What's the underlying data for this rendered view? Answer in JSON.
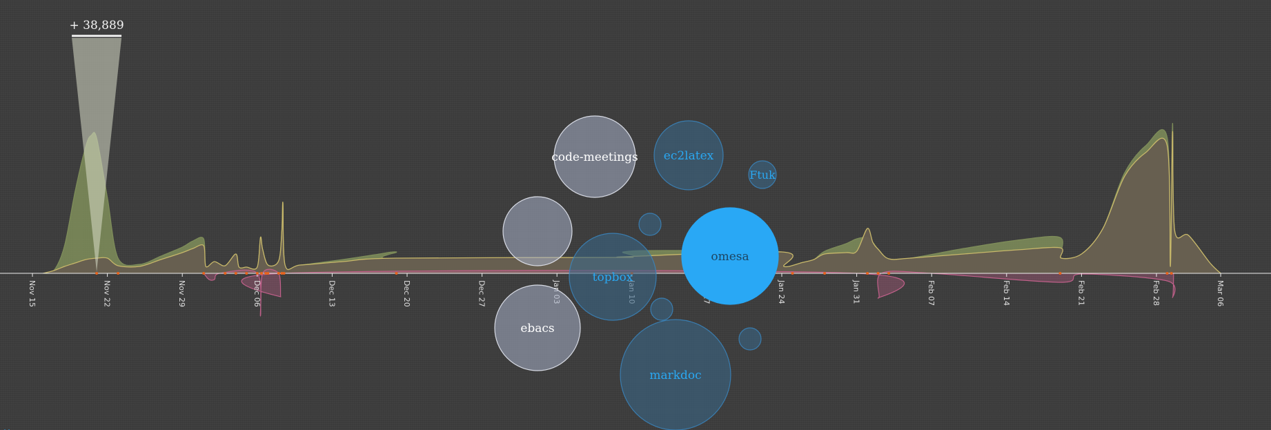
{
  "chart_data": {
    "type": "area",
    "x_axis": {
      "ticks": [
        "Nov 15",
        "Nov 22",
        "Nov 29",
        "Dec 06",
        "Dec 13",
        "Dec 20",
        "Dec 27",
        "Jan 03",
        "Jan 10",
        "Jan 17",
        "Jan 24",
        "Jan 31",
        "Feb 07",
        "Feb 14",
        "Feb 21",
        "Feb 28",
        "Mar 06"
      ]
    },
    "annotation": {
      "text": "+ 38,889",
      "at": "Nov 21"
    },
    "series": [
      {
        "role": "upper-green",
        "color": "#8aa860",
        "points": [
          [
            "Nov 16",
            0
          ],
          [
            "Nov 17",
            4
          ],
          [
            "Nov 18",
            40
          ],
          [
            "Nov 19",
            120
          ],
          [
            "Nov 20",
            185
          ],
          [
            "Nov 20.5",
            200
          ],
          [
            "Nov 21",
            196
          ],
          [
            "Nov 22",
            110
          ],
          [
            "Nov 23",
            22
          ],
          [
            "Nov 25",
            13
          ],
          [
            "Nov 27",
            25
          ],
          [
            "Nov 29",
            38
          ],
          [
            "Nov 30",
            47
          ],
          [
            "Dec 01",
            50
          ],
          [
            "Dec 01.2",
            10
          ],
          [
            "Dec 02",
            17
          ],
          [
            "Dec 03",
            11
          ],
          [
            "Dec 04",
            28
          ],
          [
            "Dec 04.3",
            9
          ],
          [
            "Dec 05",
            9
          ],
          [
            "Dec 06",
            9
          ],
          [
            "Dec 06.3",
            52
          ],
          [
            "Dec 06.5",
            35
          ],
          [
            "Dec 07",
            12
          ],
          [
            "Dec 08",
            18
          ],
          [
            "Dec 08.3",
            62
          ],
          [
            "Dec 08.4",
            102
          ],
          [
            "Dec 08.6",
            12
          ],
          [
            "Dec 10",
            12
          ],
          [
            "Dec 14",
            20
          ],
          [
            "Dec 17",
            27
          ],
          [
            "Dec 19",
            31
          ],
          [
            "Dec 19.1",
            20
          ],
          [
            "Jan 09",
            21
          ],
          [
            "Jan 09.2",
            31
          ],
          [
            "Jan 13",
            33
          ],
          [
            "Jan 24",
            31
          ],
          [
            "Jan 24.2",
            10
          ],
          [
            "Jan 26",
            16
          ],
          [
            "Jan 27",
            20
          ],
          [
            "Jan 28",
            32
          ],
          [
            "Jan 30",
            43
          ],
          [
            "Jan 31",
            50
          ],
          [
            "Feb 01",
            52
          ],
          [
            "Feb 01.5",
            45
          ],
          [
            "Feb 02",
            35
          ],
          [
            "Feb 03",
            21
          ],
          [
            "Feb 05",
            22
          ],
          [
            "Feb 10",
            36
          ],
          [
            "Feb 15",
            48
          ],
          [
            "Feb 19",
            52
          ],
          [
            "Feb 19.1",
            22
          ],
          [
            "Feb 21",
            28
          ],
          [
            "Feb 23",
            65
          ],
          [
            "Feb 25",
            145
          ],
          [
            "Feb 27",
            185
          ],
          [
            "Mar 01",
            197
          ],
          [
            "Mar 01.3",
            10
          ],
          [
            "Mar 01.5",
            217
          ],
          [
            "Mar 01.7",
            62
          ],
          [
            "Mar 03",
            55
          ],
          [
            "Mar 05",
            15
          ],
          [
            "Mar 06",
            0
          ]
        ]
      },
      {
        "role": "base-tan",
        "color": "#c8b86a",
        "points": [
          [
            "Nov 16",
            0
          ],
          [
            "Nov 17",
            4
          ],
          [
            "Nov 18",
            10
          ],
          [
            "Nov 19",
            15
          ],
          [
            "Nov 20",
            20
          ],
          [
            "Nov 21",
            22
          ],
          [
            "Nov 22",
            22
          ],
          [
            "Nov 23",
            11
          ],
          [
            "Nov 25",
            10
          ],
          [
            "Nov 27",
            20
          ],
          [
            "Nov 29",
            30
          ],
          [
            "Nov 30",
            36
          ],
          [
            "Dec 01",
            40
          ],
          [
            "Dec 01.2",
            10
          ],
          [
            "Dec 02",
            17
          ],
          [
            "Dec 03",
            11
          ],
          [
            "Dec 04",
            28
          ],
          [
            "Dec 04.3",
            9
          ],
          [
            "Dec 05",
            9
          ],
          [
            "Dec 06",
            9
          ],
          [
            "Dec 06.3",
            52
          ],
          [
            "Dec 06.5",
            35
          ],
          [
            "Dec 07",
            12
          ],
          [
            "Dec 08",
            18
          ],
          [
            "Dec 08.3",
            62
          ],
          [
            "Dec 08.4",
            102
          ],
          [
            "Dec 08.6",
            12
          ],
          [
            "Dec 10",
            12
          ],
          [
            "Dec 14",
            17
          ],
          [
            "Dec 19",
            22
          ],
          [
            "Jan 09",
            23
          ],
          [
            "Jan 09.2",
            24
          ],
          [
            "Jan 24",
            31
          ],
          [
            "Jan 24.2",
            10
          ],
          [
            "Jan 26",
            16
          ],
          [
            "Jan 27",
            20
          ],
          [
            "Jan 28",
            28
          ],
          [
            "Jan 30",
            30
          ],
          [
            "Jan 31",
            32
          ],
          [
            "Feb 01",
            65
          ],
          [
            "Feb 01.5",
            45
          ],
          [
            "Feb 02",
            35
          ],
          [
            "Feb 03",
            21
          ],
          [
            "Feb 05",
            22
          ],
          [
            "Feb 10",
            28
          ],
          [
            "Feb 15",
            34
          ],
          [
            "Feb 19",
            37
          ],
          [
            "Feb 19.1",
            22
          ],
          [
            "Feb 21",
            28
          ],
          [
            "Feb 23",
            65
          ],
          [
            "Feb 25",
            140
          ],
          [
            "Feb 27",
            175
          ],
          [
            "Mar 01",
            185
          ],
          [
            "Mar 01.3",
            10
          ],
          [
            "Mar 01.5",
            205
          ],
          [
            "Mar 01.7",
            62
          ],
          [
            "Mar 03",
            55
          ],
          [
            "Mar 05",
            15
          ],
          [
            "Mar 06",
            0
          ]
        ]
      },
      {
        "role": "negative-pink",
        "color": "#c0608a",
        "points": [
          [
            "Dec 01",
            0
          ],
          [
            "Dec 01.5",
            -9
          ],
          [
            "Dec 02",
            -9
          ],
          [
            "Dec 02.5",
            0
          ],
          [
            "Dec 06",
            0
          ],
          [
            "Dec 06.3",
            -62
          ],
          [
            "Dec 06.5",
            0
          ],
          [
            "Dec 08",
            0
          ],
          [
            "Dec 08.2",
            -34
          ],
          [
            "Dec 08.4",
            0
          ],
          [
            "Jan 31",
            0
          ],
          [
            "Feb 02",
            -36
          ],
          [
            "Feb 02.3",
            0
          ],
          [
            "Feb 07",
            0
          ],
          [
            "Feb 19",
            -13
          ],
          [
            "Feb 21",
            -1
          ],
          [
            "Mar 01",
            -11
          ],
          [
            "Mar 01.5",
            -35
          ],
          [
            "Mar 01.6",
            0
          ]
        ]
      }
    ],
    "events": [
      "Nov 21",
      "Nov 23",
      "Dec 01",
      "Dec 03",
      "Dec 04",
      "Dec 05",
      "Dec 06",
      "Dec 06.4",
      "Dec 06.8",
      "Dec 07",
      "Dec 08",
      "Dec 08.3",
      "Dec 08.5",
      "Dec 19",
      "Jan 10",
      "Jan 25",
      "Jan 28",
      "Feb 01",
      "Feb 02",
      "Feb 03",
      "Feb 19",
      "Mar 01",
      "Mar 01.4"
    ],
    "bubbles": [
      {
        "label": "code-meetings",
        "size": 59,
        "style": "white"
      },
      {
        "label": "ec2latex",
        "size": 50,
        "style": "blue"
      },
      {
        "label": "Ftuk",
        "size": 20,
        "style": "blue"
      },
      {
        "label": "",
        "size": 16,
        "style": "blue"
      },
      {
        "label": "",
        "size": 50,
        "style": "white"
      },
      {
        "label": "omesa",
        "size": 70,
        "style": "bright-blue"
      },
      {
        "label": "topbox",
        "size": 63,
        "style": "blue"
      },
      {
        "label": "ebacs",
        "size": 62,
        "style": "white"
      },
      {
        "label": "",
        "size": 16,
        "style": "blue"
      },
      {
        "label": "",
        "size": 16,
        "style": "blue"
      },
      {
        "label": "markdoc",
        "size": 80,
        "style": "blue"
      }
    ]
  },
  "colors": {
    "background": "#3d3d3d",
    "axis": "#f0f0f0",
    "tick_text": "#e0e0e0",
    "upper_fill": "#7f8e5a",
    "base_fill": "#665d50",
    "negative": "#c0608a",
    "event_marker": "#e8641e",
    "spike": "#d8dcc8",
    "bubble_white": "#a8b0c8",
    "bubble_blue": "#3a6585",
    "bubble_bright": "#29a8f5",
    "bubble_text_blue": "#2aa8f2"
  }
}
